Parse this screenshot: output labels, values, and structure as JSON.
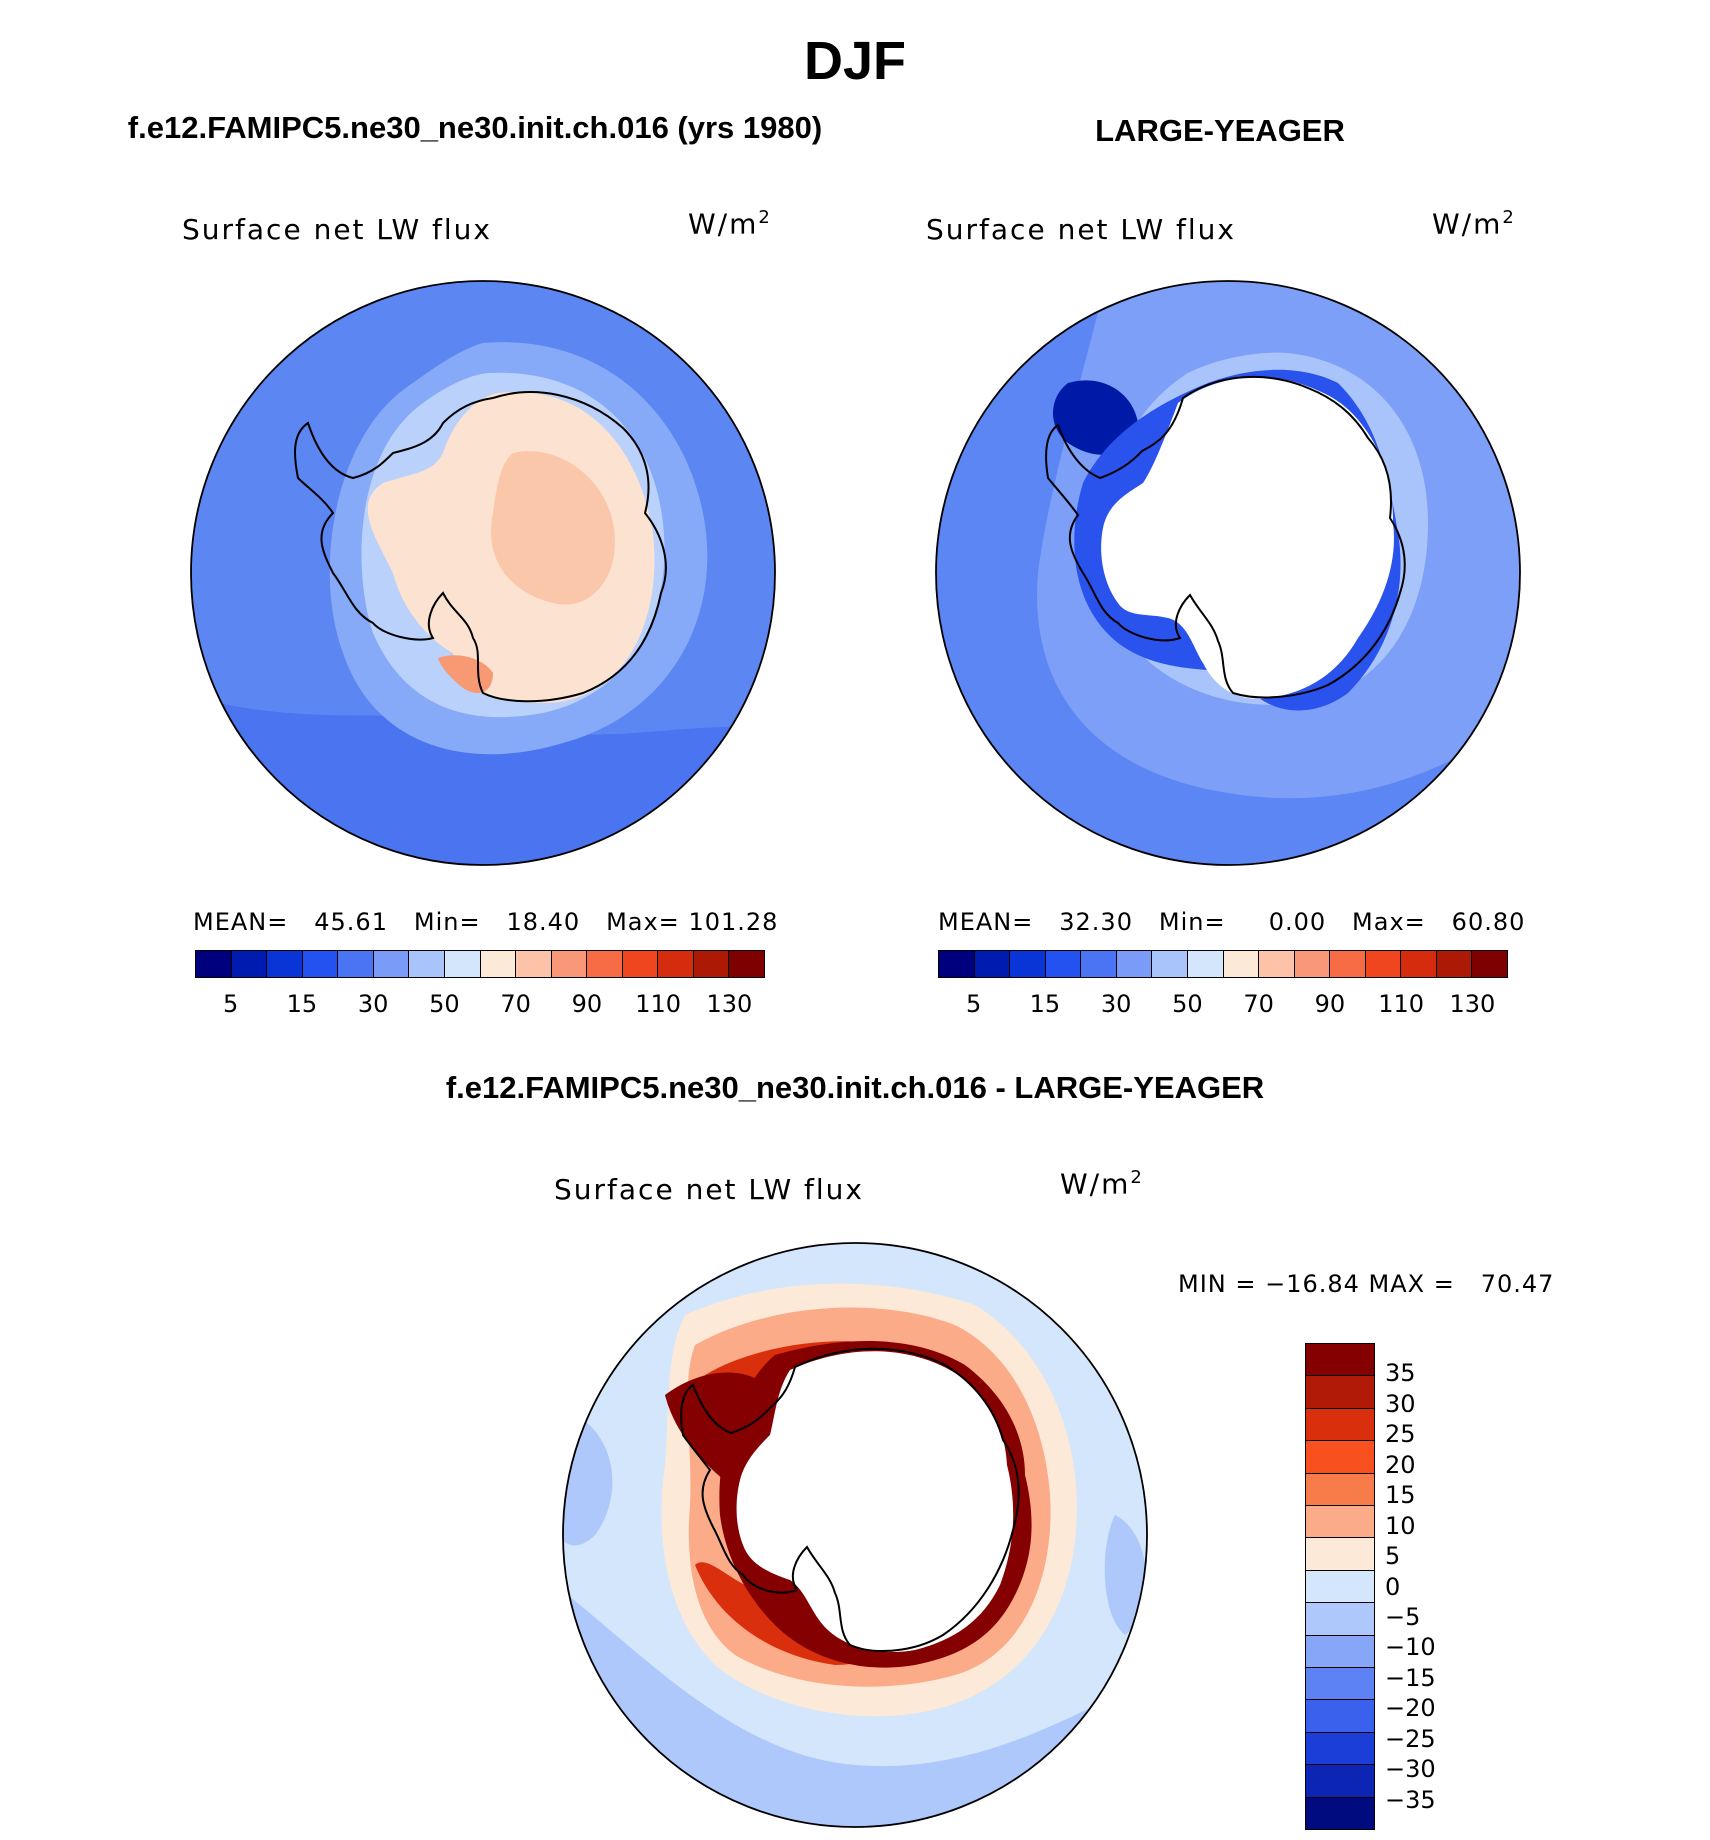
{
  "title": "DJF",
  "panel1": {
    "case_title": "f.e12.FAMIPC5.ne30_ne30.init.ch.016 (yrs 1980)",
    "variable": "Surface net LW flux",
    "units_base": "W/m",
    "units_exp": "2",
    "mean_label": "MEAN=",
    "mean": "45.61",
    "min_label": "Min=",
    "min": "18.40",
    "max_label": "Max=",
    "max": "101.28"
  },
  "panel2": {
    "case_title": "LARGE-YEAGER",
    "variable": "Surface net LW flux",
    "units_base": "W/m",
    "units_exp": "2",
    "mean_label": "MEAN=",
    "mean": "32.30",
    "min_label": "Min=",
    "min": "0.00",
    "max_label": "Max=",
    "max": "60.80"
  },
  "abs_colorbar": {
    "colors": [
      "#00007f",
      "#001bb0",
      "#0a35d6",
      "#2352f0",
      "#4b74f5",
      "#7a9cf8",
      "#a9c4fb",
      "#d4e6fc",
      "#fde9d8",
      "#fcc3a8",
      "#f99878",
      "#f76b45",
      "#f04620",
      "#d42c0d",
      "#ac1a06",
      "#7f0000"
    ],
    "tick_labels": [
      "5",
      "15",
      "30",
      "50",
      "70",
      "90",
      "110",
      "130"
    ]
  },
  "panel3": {
    "diff_title": "f.e12.FAMIPC5.ne30_ne30.init.ch.016 - LARGE-YEAGER",
    "variable": "Surface net LW flux",
    "units_base": "W/m",
    "units_exp": "2",
    "minmax": "MIN = −16.84 MAX =   70.47"
  },
  "diff_colorbar": {
    "colors": [
      "#850000",
      "#b01a06",
      "#d92f0d",
      "#f8501e",
      "#f87c4a",
      "#fbab88",
      "#fde9d8",
      "#d4e6fc",
      "#aec8fb",
      "#86a6f7",
      "#5c82f4",
      "#3a60ee",
      "#1c3ed8",
      "#0c25b4",
      "#000b7f"
    ],
    "tick_labels": [
      "35",
      "30",
      "25",
      "20",
      "15",
      "10",
      "5",
      "0",
      "−5",
      "−10",
      "−15",
      "−20",
      "−25",
      "−30",
      "−35"
    ]
  }
}
